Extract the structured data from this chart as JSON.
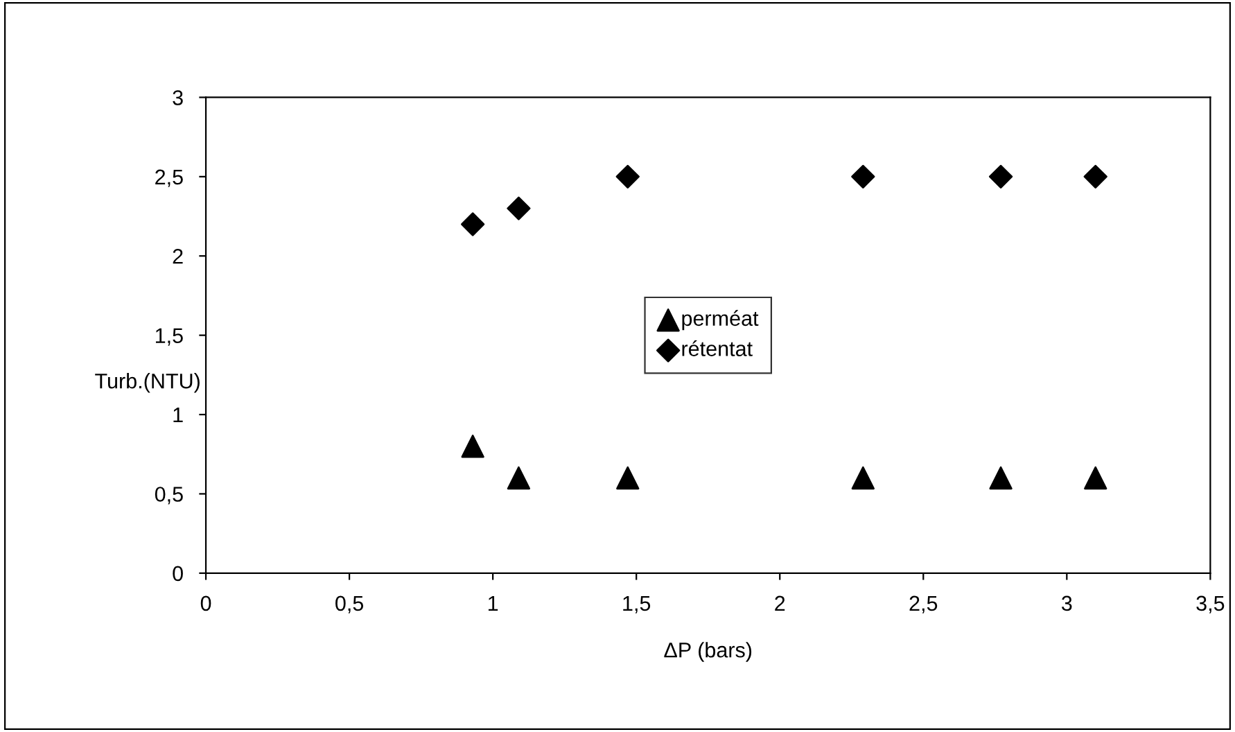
{
  "chart_data": {
    "type": "scatter",
    "xlabel": "ΔP (bars)",
    "ylabel": "Turb.(NTU)",
    "series": [
      {
        "name": "perméat",
        "color": "#000000",
        "marker": "triangle",
        "x": [
          0.93,
          1.09,
          1.47,
          2.29,
          2.77,
          3.1
        ],
        "values": [
          0.8,
          0.6,
          0.6,
          0.6,
          0.6,
          0.6
        ]
      },
      {
        "name": "rétentat",
        "color": "#000000",
        "marker": "diamond",
        "x": [
          0.93,
          1.09,
          1.47,
          2.29,
          2.77,
          3.1
        ],
        "values": [
          2.2,
          2.3,
          2.5,
          2.5,
          2.5,
          2.5
        ]
      }
    ],
    "xlim": [
      0,
      3.5
    ],
    "xticks": [
      0,
      {
        "value": 0.5,
        "label": "0,5"
      },
      1,
      {
        "value": 1.5,
        "label": "1,5"
      },
      2,
      {
        "value": 2.5,
        "label": "2,5"
      },
      3,
      {
        "value": 3.5,
        "label": "3,5"
      }
    ],
    "ylim": [
      0,
      3
    ],
    "yticks": [
      0,
      {
        "value": 0.5,
        "label": "0,5"
      },
      1,
      {
        "value": 1.5,
        "label": "1,5"
      },
      2,
      {
        "value": 2.5,
        "label": "2,5"
      },
      3
    ],
    "grid": false,
    "legend": "center"
  }
}
